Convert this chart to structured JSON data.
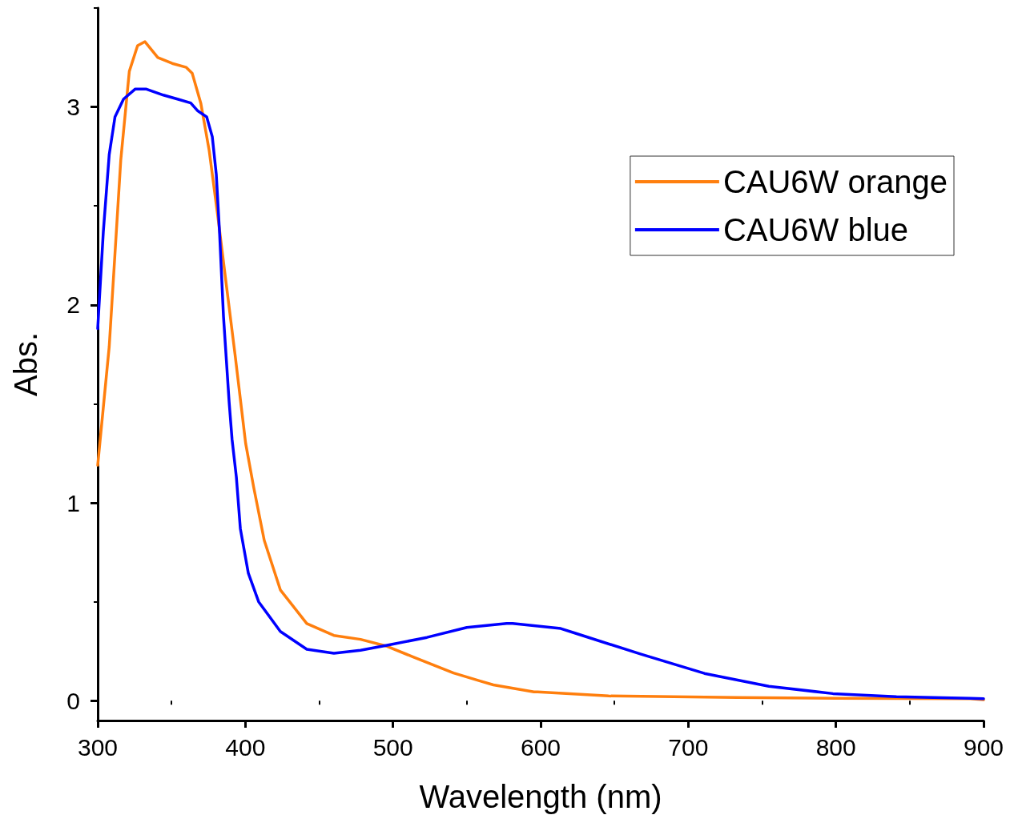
{
  "chart_data": {
    "type": "line",
    "xlabel": "Wavelength (nm)",
    "ylabel": "Abs.",
    "xlim": [
      300,
      900
    ],
    "xticks": [
      300,
      400,
      500,
      600,
      700,
      800,
      900
    ],
    "ylim": [
      -0.1,
      3.5
    ],
    "yticks": [
      0,
      1,
      2,
      3
    ],
    "grid": false,
    "legend": "top right",
    "marker": "none",
    "line_style": "solid",
    "series": [
      {
        "name": "CAU6W orange",
        "color": "#ff7f0e",
        "x": [
          300,
          307.8,
          315.6,
          321.4,
          327,
          332,
          340.7,
          350.5,
          360,
          364,
          369.8,
          375.5,
          381.3,
          387.3,
          393,
          400.2,
          405.6,
          412.8,
          423.7,
          441.6,
          459.9,
          478,
          496,
          514,
          541,
          559,
          568,
          595.5,
          598,
          646,
          733,
          800,
          891,
          900
        ],
        "values": [
          1.19,
          1.79,
          2.73,
          3.18,
          3.31,
          3.33,
          3.25,
          3.22,
          3.2,
          3.17,
          3.02,
          2.78,
          2.45,
          2.09,
          1.75,
          1.3,
          1.08,
          0.81,
          0.56,
          0.39,
          0.33,
          0.31,
          0.275,
          0.22,
          0.14,
          0.1,
          0.08,
          0.045,
          0.045,
          0.024,
          0.016,
          0.012,
          0.01,
          0.005
        ]
      },
      {
        "name": "CAU6W blue",
        "color": "#0000ff",
        "x": [
          300,
          303.8,
          307.8,
          311.7,
          317.5,
          325.3,
          333,
          344.5,
          354,
          363,
          367.8,
          373.8,
          377.6,
          380.3,
          382.5,
          385.2,
          389,
          391,
          393.9,
          396.6,
          402,
          409,
          423.7,
          441.6,
          460,
          478,
          496,
          523,
          550,
          577,
          581,
          613.6,
          624,
          668,
          711,
          754.6,
          798,
          841,
          891,
          900
        ],
        "values": [
          1.88,
          2.37,
          2.76,
          2.95,
          3.04,
          3.09,
          3.09,
          3.06,
          3.04,
          3.02,
          2.98,
          2.95,
          2.85,
          2.66,
          2.37,
          1.94,
          1.51,
          1.32,
          1.13,
          0.87,
          0.645,
          0.5,
          0.35,
          0.26,
          0.24,
          0.255,
          0.28,
          0.32,
          0.37,
          0.39,
          0.39,
          0.365,
          0.34,
          0.235,
          0.138,
          0.073,
          0.036,
          0.02,
          0.012,
          0.01
        ]
      }
    ]
  }
}
